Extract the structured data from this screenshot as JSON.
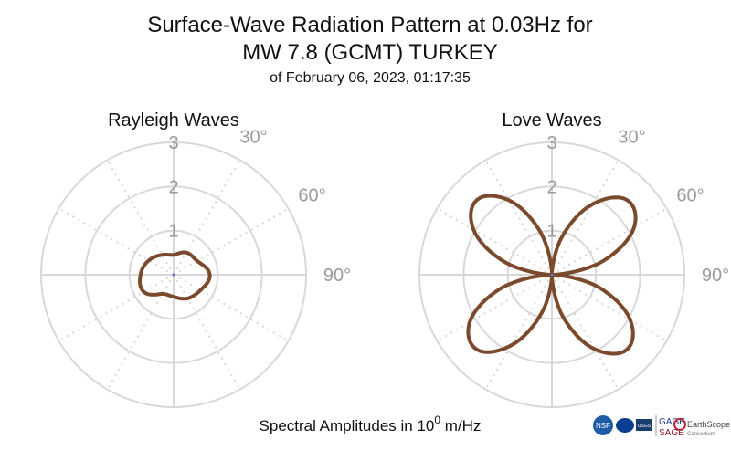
{
  "title_line1": "Surface-Wave Radiation Pattern at 0.03Hz for",
  "title_line2": "MW 7.8 (GCMT) TURKEY",
  "subtitle": "of February 06, 2023, 01:17:35",
  "footer": {
    "prefix": "Spectral Amplitudes in 10",
    "exponent": "0",
    "suffix": " m/Hz"
  },
  "logos": {
    "nsf": "NSF",
    "usgs": "USGS",
    "gage": "GAGE",
    "sage": "SAGE",
    "earthscope": "EarthScope",
    "consortium": "Consortium"
  },
  "colors": {
    "curve": "#7b4a2d",
    "grid": "#d8d8d8",
    "tick_text": "#9a9a9a"
  },
  "chart_data": [
    {
      "type": "polar-line",
      "title": "Rayleigh Waves",
      "r_ticks": [
        "1",
        "2",
        "3"
      ],
      "r_max": 3,
      "angle_tick_labels": [
        "30°",
        "60°",
        "90°"
      ],
      "angular_grid_deg": 30,
      "direction": "clockwise from top",
      "angles_deg": [
        0,
        30,
        60,
        90,
        120,
        150,
        180,
        210,
        240,
        270,
        300,
        330
      ],
      "radius": [
        0.45,
        0.58,
        0.62,
        0.82,
        0.7,
        0.62,
        0.5,
        0.5,
        0.78,
        0.75,
        0.65,
        0.52
      ],
      "note_scale": "amplitudes in 10^0 m/Hz"
    },
    {
      "type": "polar-line",
      "title": "Love Waves",
      "r_ticks": [
        "1",
        "2",
        "3"
      ],
      "r_max": 3,
      "angle_tick_labels": [
        "30°",
        "60°",
        "90°"
      ],
      "angular_grid_deg": 30,
      "direction": "clockwise from top",
      "angles_deg": [
        0,
        15,
        30,
        45,
        60,
        75,
        90,
        105,
        120,
        135,
        150,
        165,
        180,
        195,
        210,
        225,
        240,
        255,
        270,
        285,
        300,
        315,
        330,
        345
      ],
      "radius": [
        0.05,
        0.9,
        1.85,
        2.4,
        2.15,
        1.2,
        0.05,
        1.1,
        2.05,
        2.4,
        1.95,
        1.0,
        0.05,
        0.9,
        1.85,
        2.4,
        2.15,
        1.2,
        0.05,
        1.1,
        2.05,
        2.4,
        1.95,
        1.0
      ]
    }
  ]
}
